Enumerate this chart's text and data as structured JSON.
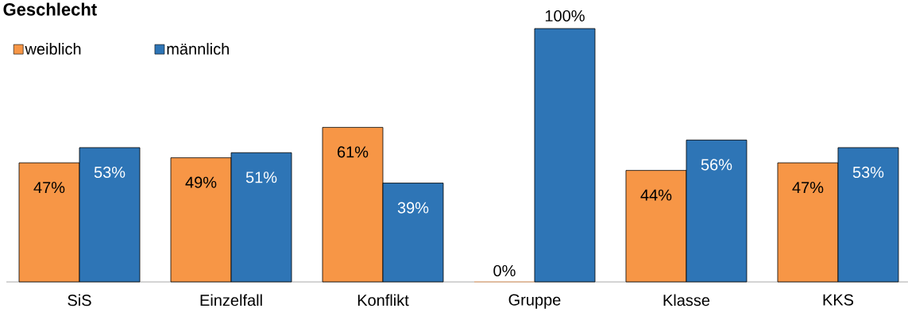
{
  "chart_data": {
    "type": "bar",
    "title": "Geschlecht",
    "categories": [
      "SiS",
      "Einzelfall",
      "Konflikt",
      "Gruppe",
      "Klasse",
      "KKS"
    ],
    "series": [
      {
        "name": "weiblich",
        "color": "#f79646",
        "values": [
          47,
          49,
          61,
          0,
          44,
          47
        ],
        "value_labels": [
          "47%",
          "49%",
          "61%",
          "0%",
          "44%",
          "47%"
        ]
      },
      {
        "name": "männlich",
        "color": "#2e75b6",
        "values": [
          53,
          51,
          39,
          100,
          56,
          53
        ],
        "value_labels": [
          "53%",
          "51%",
          "39%",
          "100%",
          "56%",
          "53%"
        ]
      }
    ],
    "legend": "top left"
  }
}
